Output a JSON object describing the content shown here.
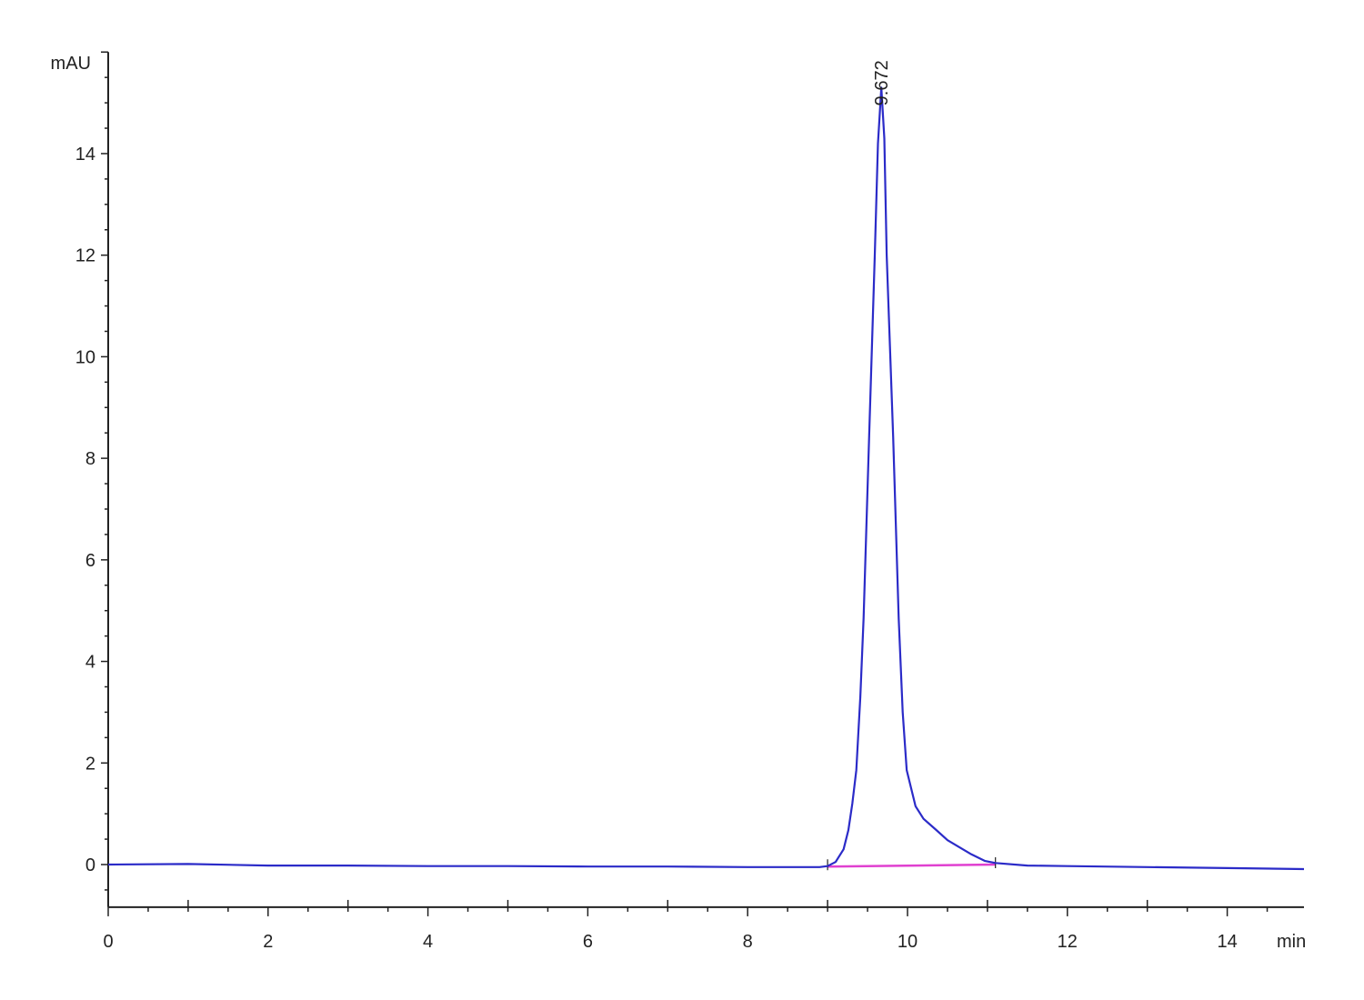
{
  "chart_data": {
    "type": "line",
    "title": "",
    "xlabel": "min",
    "ylabel": "mAU",
    "xlim": [
      0,
      14.96
    ],
    "ylim": [
      -0.84,
      16.0
    ],
    "x_ticks": [
      0,
      2,
      4,
      6,
      8,
      10,
      12,
      14
    ],
    "y_ticks": [
      0,
      2,
      4,
      6,
      8,
      10,
      12,
      14
    ],
    "x_minor_step": 0.5,
    "y_minor_step": 0.5,
    "grid": false,
    "colors": {
      "signal": "#2b2bc8",
      "baseline": "#e040d0",
      "axis": "#222222"
    },
    "series": [
      {
        "values": [
          [
            0,
            0.0
          ],
          [
            1,
            0.01
          ],
          [
            2,
            -0.02
          ],
          [
            3,
            -0.02
          ],
          [
            4,
            -0.03
          ],
          [
            5,
            -0.03
          ],
          [
            6,
            -0.04
          ],
          [
            7,
            -0.04
          ],
          [
            8,
            -0.05
          ],
          [
            8.9,
            -0.05
          ],
          [
            9.0,
            -0.03
          ],
          [
            9.1,
            0.05
          ],
          [
            9.2,
            0.3
          ],
          [
            9.26,
            0.68
          ],
          [
            9.31,
            1.2
          ],
          [
            9.36,
            1.86
          ],
          [
            9.41,
            3.3
          ],
          [
            9.45,
            4.85
          ],
          [
            9.52,
            8.43
          ],
          [
            9.59,
            12.0
          ],
          [
            9.63,
            14.2
          ],
          [
            9.672,
            15.3
          ],
          [
            9.71,
            14.3
          ],
          [
            9.74,
            12.0
          ],
          [
            9.82,
            8.43
          ],
          [
            9.89,
            4.85
          ],
          [
            9.94,
            3.0
          ],
          [
            9.99,
            1.86
          ],
          [
            10.1,
            1.15
          ],
          [
            10.2,
            0.9
          ],
          [
            10.36,
            0.68
          ],
          [
            10.5,
            0.48
          ],
          [
            10.67,
            0.32
          ],
          [
            10.8,
            0.2
          ],
          [
            10.97,
            0.07
          ],
          [
            11.1,
            0.03
          ],
          [
            11.5,
            -0.02
          ],
          [
            12,
            -0.03
          ],
          [
            13,
            -0.05
          ],
          [
            14,
            -0.07
          ],
          [
            14.96,
            -0.09
          ]
        ]
      }
    ],
    "integration_baseline": [
      [
        9.0,
        -0.04
      ],
      [
        11.1,
        0.0
      ]
    ],
    "peak_labels": [
      {
        "x": 9.672,
        "y": 15.3,
        "text": "9.672"
      }
    ]
  }
}
